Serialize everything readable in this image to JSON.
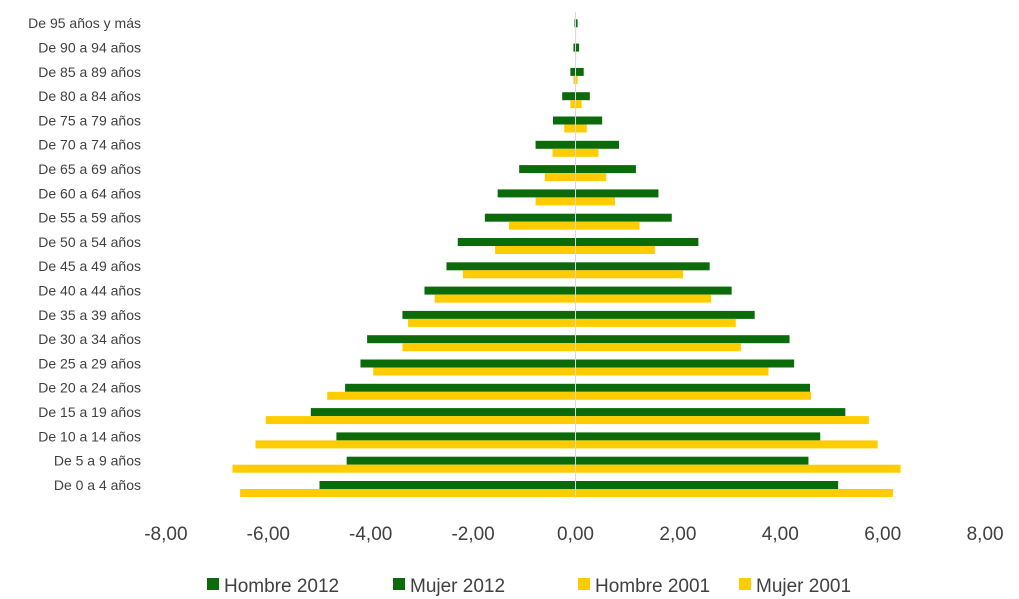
{
  "chart_data": {
    "type": "bar",
    "orientation": "horizontal",
    "categories": [
      "De 0 a 4 años",
      "De 5 a 9 años",
      "De 10 a 14 años",
      "De 15 a 19 años",
      "De 20 a 24 años",
      "De 25 a 29 años",
      "De 30 a 34 años",
      "De 35 a 39 años",
      "De 40 a 44 años",
      "De 45 a 49 años",
      "De 50 a 54 años",
      "De 55 a 59 años",
      "De 60 a 64 años",
      "De 65 a 69 años",
      "De 70 a 74 años",
      "De 75 a 79 años",
      "De 80 a 84 años",
      "De 85 a 89 años",
      "De 90 a 94 años",
      "De 95 años y más"
    ],
    "series": [
      {
        "name": "Hombre 2012",
        "color": "#0b6b0b",
        "values": [
          -5.0,
          -4.47,
          -4.67,
          -5.17,
          -4.5,
          -4.2,
          -4.07,
          -3.38,
          -2.95,
          -2.52,
          -2.3,
          -1.77,
          -1.52,
          -1.1,
          -0.78,
          -0.44,
          -0.26,
          -0.1,
          -0.04,
          -0.02
        ]
      },
      {
        "name": "Mujer 2012",
        "color": "#0b6b0b",
        "values": [
          5.13,
          4.55,
          4.78,
          5.27,
          4.58,
          4.27,
          4.18,
          3.5,
          3.05,
          2.62,
          2.4,
          1.88,
          1.62,
          1.18,
          0.85,
          0.52,
          0.28,
          0.16,
          0.07,
          0.04
        ]
      },
      {
        "name": "Hombre 2001",
        "color": "#ffcc00",
        "values": [
          -6.55,
          -6.7,
          -6.25,
          -6.05,
          -4.85,
          -3.95,
          -3.38,
          -3.27,
          -2.75,
          -2.2,
          -1.57,
          -1.3,
          -0.78,
          -0.6,
          -0.45,
          -0.22,
          -0.1,
          -0.04,
          -0.01,
          -0.01
        ]
      },
      {
        "name": "Mujer 2001",
        "color": "#ffcc00",
        "values": [
          6.2,
          6.35,
          5.9,
          5.73,
          4.6,
          3.77,
          3.23,
          3.13,
          2.65,
          2.1,
          1.55,
          1.25,
          0.77,
          0.6,
          0.45,
          0.22,
          0.12,
          0.04,
          0.01,
          0.01
        ]
      }
    ],
    "xlim": [
      -8,
      8
    ],
    "x_ticks": [
      "-8,00",
      "-6,00",
      "-4,00",
      "-2,00",
      "0,00",
      "2,00",
      "4,00",
      "6,00",
      "8,00"
    ],
    "grid": false,
    "legend_position": "bottom"
  }
}
